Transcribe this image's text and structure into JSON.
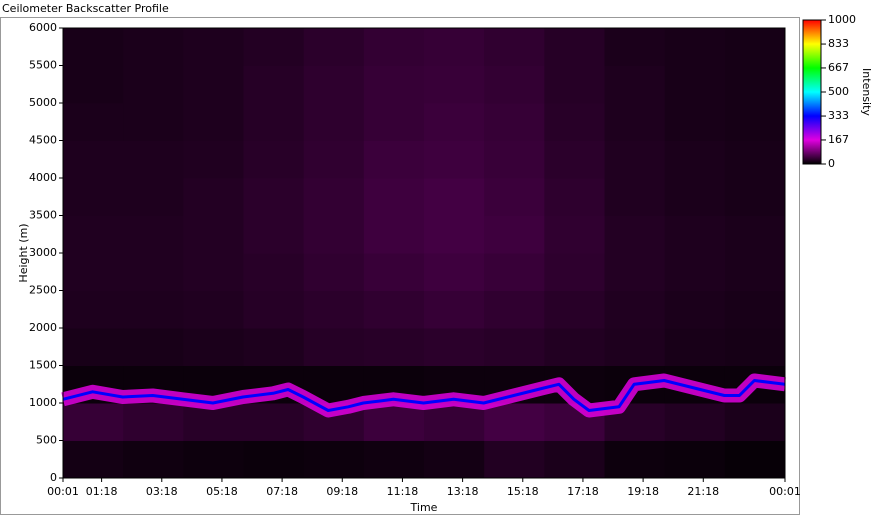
{
  "chart_data": {
    "type": "heatmap",
    "title": "Ceilometer Backscatter Profile",
    "xlabel": "Time",
    "ylabel": "Height (m)",
    "colorbar_label": "Intensity",
    "xlim": [
      1,
      1441
    ],
    "xticks": [
      {
        "value": 1,
        "label": "00:01"
      },
      {
        "value": 78,
        "label": "01:18"
      },
      {
        "value": 198,
        "label": "03:18"
      },
      {
        "value": 318,
        "label": "05:18"
      },
      {
        "value": 438,
        "label": "07:18"
      },
      {
        "value": 558,
        "label": "09:18"
      },
      {
        "value": 678,
        "label": "11:18"
      },
      {
        "value": 798,
        "label": "13:18"
      },
      {
        "value": 918,
        "label": "15:18"
      },
      {
        "value": 1038,
        "label": "17:18"
      },
      {
        "value": 1158,
        "label": "19:18"
      },
      {
        "value": 1278,
        "label": "21:18"
      },
      {
        "value": 1441,
        "label": "00:01"
      }
    ],
    "ylim": [
      0,
      6000
    ],
    "yticks": [
      0,
      500,
      1000,
      1500,
      2000,
      2500,
      3000,
      3500,
      4000,
      4500,
      5000,
      5500,
      6000
    ],
    "zlim": [
      0,
      1000
    ],
    "zticks": [
      0,
      167,
      333,
      500,
      667,
      833,
      1000
    ],
    "colors": [
      "#000000",
      "#e000e0",
      "#0000ff",
      "#00ffff",
      "#00ff00",
      "#ffff00",
      "#ff0000"
    ],
    "x_edges": [
      1,
      121,
      241,
      361,
      481,
      601,
      721,
      841,
      961,
      1081,
      1201,
      1321,
      1441
    ],
    "y_edges": [
      0,
      500,
      1000,
      1500,
      2000,
      2500,
      3000,
      3500,
      4000,
      4500,
      5000,
      5500,
      6000
    ],
    "z": [
      [
        15,
        12,
        10,
        8,
        10,
        12,
        15,
        25,
        20,
        10,
        8,
        5
      ],
      [
        40,
        35,
        30,
        30,
        35,
        45,
        40,
        50,
        45,
        30,
        25,
        20
      ],
      [
        8,
        8,
        8,
        8,
        8,
        8,
        10,
        10,
        10,
        8,
        8,
        8
      ],
      [
        18,
        18,
        20,
        22,
        28,
        30,
        32,
        30,
        25,
        22,
        18,
        16
      ],
      [
        22,
        22,
        24,
        28,
        32,
        36,
        40,
        36,
        30,
        24,
        20,
        18
      ],
      [
        24,
        24,
        26,
        30,
        36,
        42,
        46,
        42,
        34,
        26,
        22,
        20
      ],
      [
        24,
        24,
        26,
        32,
        38,
        46,
        50,
        46,
        36,
        26,
        22,
        20
      ],
      [
        22,
        22,
        26,
        32,
        38,
        46,
        50,
        44,
        34,
        24,
        20,
        18
      ],
      [
        22,
        22,
        24,
        30,
        36,
        44,
        46,
        42,
        32,
        24,
        20,
        18
      ],
      [
        20,
        20,
        22,
        28,
        34,
        40,
        44,
        40,
        30,
        22,
        18,
        16
      ],
      [
        18,
        20,
        22,
        28,
        34,
        40,
        42,
        38,
        28,
        22,
        18,
        16
      ],
      [
        18,
        20,
        22,
        26,
        32,
        38,
        40,
        36,
        28,
        20,
        18,
        16
      ]
    ],
    "layer": {
      "value": 333,
      "x": [
        1,
        60,
        120,
        180,
        240,
        300,
        360,
        420,
        450,
        480,
        530,
        570,
        600,
        660,
        720,
        780,
        840,
        900,
        960,
        990,
        1020,
        1050,
        1110,
        1140,
        1200,
        1260,
        1320,
        1350,
        1380,
        1441
      ],
      "y": [
        1050,
        1150,
        1080,
        1100,
        1050,
        1000,
        1080,
        1130,
        1180,
        1080,
        900,
        950,
        1000,
        1050,
        1000,
        1050,
        1000,
        1100,
        1200,
        1250,
        1050,
        900,
        950,
        1250,
        1300,
        1200,
        1100,
        1100,
        1300,
        1250
      ]
    }
  }
}
